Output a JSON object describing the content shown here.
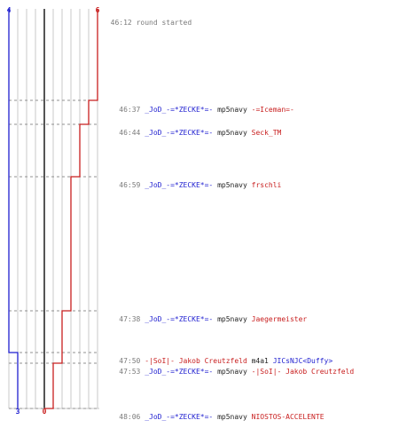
{
  "header": {
    "time": "46:12",
    "text": "round started"
  },
  "score_labels": {
    "blue_start": "4",
    "red_start": "6",
    "blue_end": "3",
    "red_end": "0"
  },
  "colors": {
    "blue": "#1f1fd0",
    "red": "#c81e1e",
    "gray": "#909090",
    "dark": "#555555",
    "line": "#c8c8c8"
  },
  "events": [
    {
      "time": "46:37",
      "killer": "_JoD_-=*ZECKE*=-",
      "killer_team": "blue",
      "weapon": "mp5navy",
      "victim": "-=Iceman=-",
      "victim_team": "red"
    },
    {
      "time": "46:44",
      "killer": "_JoD_-=*ZECKE*=-",
      "killer_team": "blue",
      "weapon": "mp5navy",
      "victim": "Seck_TM",
      "victim_team": "red"
    },
    {
      "time": "46:59",
      "killer": "_JoD_-=*ZECKE*=-",
      "killer_team": "blue",
      "weapon": "mp5navy",
      "victim": "frschli",
      "victim_team": "red"
    },
    {
      "time": "47:38",
      "killer": "_JoD_-=*ZECKE*=-",
      "killer_team": "blue",
      "weapon": "mp5navy",
      "victim": "Jaegermeister",
      "victim_team": "red"
    },
    {
      "time": "47:50",
      "killer": "-|SoI|- Jakob Creutzfeld",
      "killer_team": "red",
      "weapon": "m4a1",
      "victim": "JICsNJC<Duffy>",
      "victim_team": "blue"
    },
    {
      "time": "47:53",
      "killer": "_JoD_-=*ZECKE*=-",
      "killer_team": "blue",
      "weapon": "mp5navy",
      "victim": "-|SoI|- Jakob Creutzfeld",
      "victim_team": "red"
    },
    {
      "time": "48:06",
      "killer": "_JoD_-=*ZECKE*=-",
      "killer_team": "blue",
      "weapon": "mp5navy",
      "victim": "NIOSTOS-ACCELENTE",
      "victim_team": "red"
    }
  ]
}
